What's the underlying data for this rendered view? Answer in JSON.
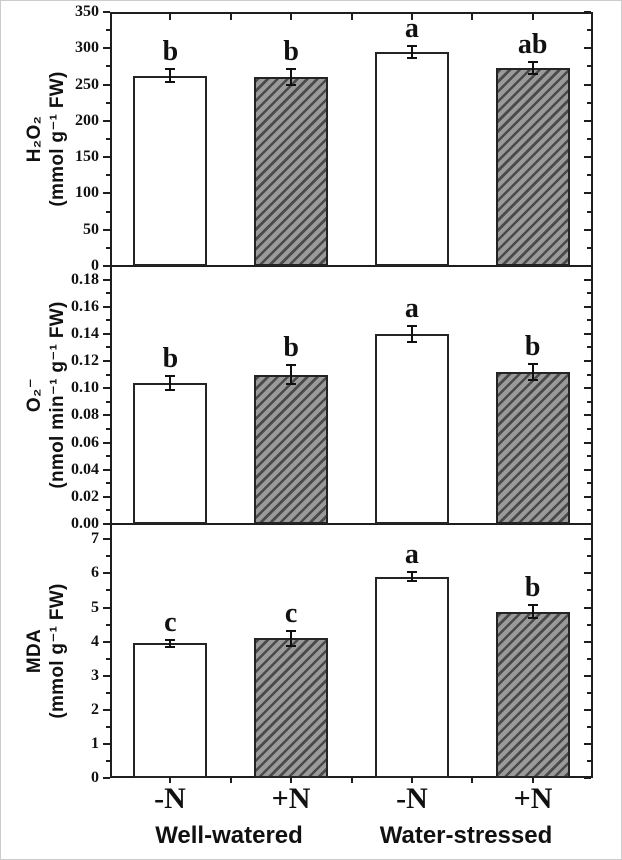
{
  "x_axis": {
    "tick_labels": [
      "-N",
      "+N",
      "-N",
      "+N"
    ],
    "group_labels": [
      "Well-watered",
      "Water-stressed"
    ]
  },
  "styles": {
    "frame_color": "#1e1e1e",
    "text_color": "#111111",
    "bar_open_fill": "#ffffff",
    "bar_border": "#242424",
    "hatch_bg": "#9a9a9a",
    "hatch_stripe": "#4a4a4a",
    "error_bar_color": "#101010",
    "page_border": "#cccccc"
  },
  "chart_data": [
    {
      "type": "bar",
      "panel": "h2o2",
      "title": "",
      "ylabel": "H₂O₂ (mmol g⁻¹ FW)",
      "ylabel_lines": [
        "H₂O₂",
        "(mmol g⁻¹ FW)"
      ],
      "xlabel": "",
      "categories": [
        "Well-watered -N",
        "Well-watered +N",
        "Water-stressed -N",
        "Water-stressed +N"
      ],
      "values": [
        262,
        261,
        295,
        273
      ],
      "errors": [
        9,
        11,
        8,
        8
      ],
      "sig_letters": [
        "b",
        "b",
        "a",
        "ab"
      ],
      "bar_fill": [
        "open",
        "hatched",
        "open",
        "hatched"
      ],
      "ylim": [
        0,
        350
      ],
      "yticks": [
        0,
        50,
        100,
        150,
        200,
        250,
        300,
        350
      ],
      "ytick_labels": [
        "0",
        "50",
        "100",
        "150",
        "200",
        "250",
        "300",
        "350"
      ],
      "ytick_minor_step": 25,
      "grid": false,
      "legend": "none"
    },
    {
      "type": "bar",
      "panel": "o2",
      "title": "",
      "ylabel": "O₂⁻ (nmol min⁻¹ g⁻¹ FW)",
      "ylabel_lines": [
        "O₂⁻",
        "(nmol min⁻¹ g⁻¹ FW)"
      ],
      "xlabel": "",
      "categories": [
        "Well-watered -N",
        "Well-watered +N",
        "Water-stressed -N",
        "Water-stressed +N"
      ],
      "values": [
        0.104,
        0.11,
        0.14,
        0.112
      ],
      "errors": [
        0.005,
        0.007,
        0.006,
        0.006
      ],
      "sig_letters": [
        "b",
        "b",
        "a",
        "b"
      ],
      "bar_fill": [
        "open",
        "hatched",
        "open",
        "hatched"
      ],
      "ylim": [
        0,
        0.19
      ],
      "yticks": [
        0,
        0.02,
        0.04,
        0.06,
        0.08,
        0.1,
        0.12,
        0.14,
        0.16,
        0.18
      ],
      "ytick_labels": [
        "0.00",
        "0.02",
        "0.04",
        "0.06",
        "0.08",
        "0.10",
        "0.12",
        "0.14",
        "0.16",
        "0.18"
      ],
      "ytick_minor_step": 0.01,
      "grid": false,
      "legend": "none"
    },
    {
      "type": "bar",
      "panel": "mda",
      "title": "",
      "ylabel": "MDA (mmol g⁻¹ FW)",
      "ylabel_lines": [
        "MDA",
        "(mmol g⁻¹ FW)"
      ],
      "xlabel": "",
      "categories": [
        "Well-watered -N",
        "Well-watered +N",
        "Water-stressed -N",
        "Water-stressed +N"
      ],
      "values": [
        3.95,
        4.1,
        5.9,
        4.88
      ],
      "errors": [
        0.1,
        0.22,
        0.13,
        0.2
      ],
      "sig_letters": [
        "c",
        "c",
        "a",
        "b"
      ],
      "bar_fill": [
        "open",
        "hatched",
        "open",
        "hatched"
      ],
      "ylim": [
        0,
        7.45
      ],
      "yticks": [
        0,
        1,
        2,
        3,
        4,
        5,
        6,
        7
      ],
      "ytick_labels": [
        "0",
        "1",
        "2",
        "3",
        "4",
        "5",
        "6",
        "7"
      ],
      "ytick_minor_step": 0.5,
      "grid": false,
      "legend": "none"
    }
  ]
}
